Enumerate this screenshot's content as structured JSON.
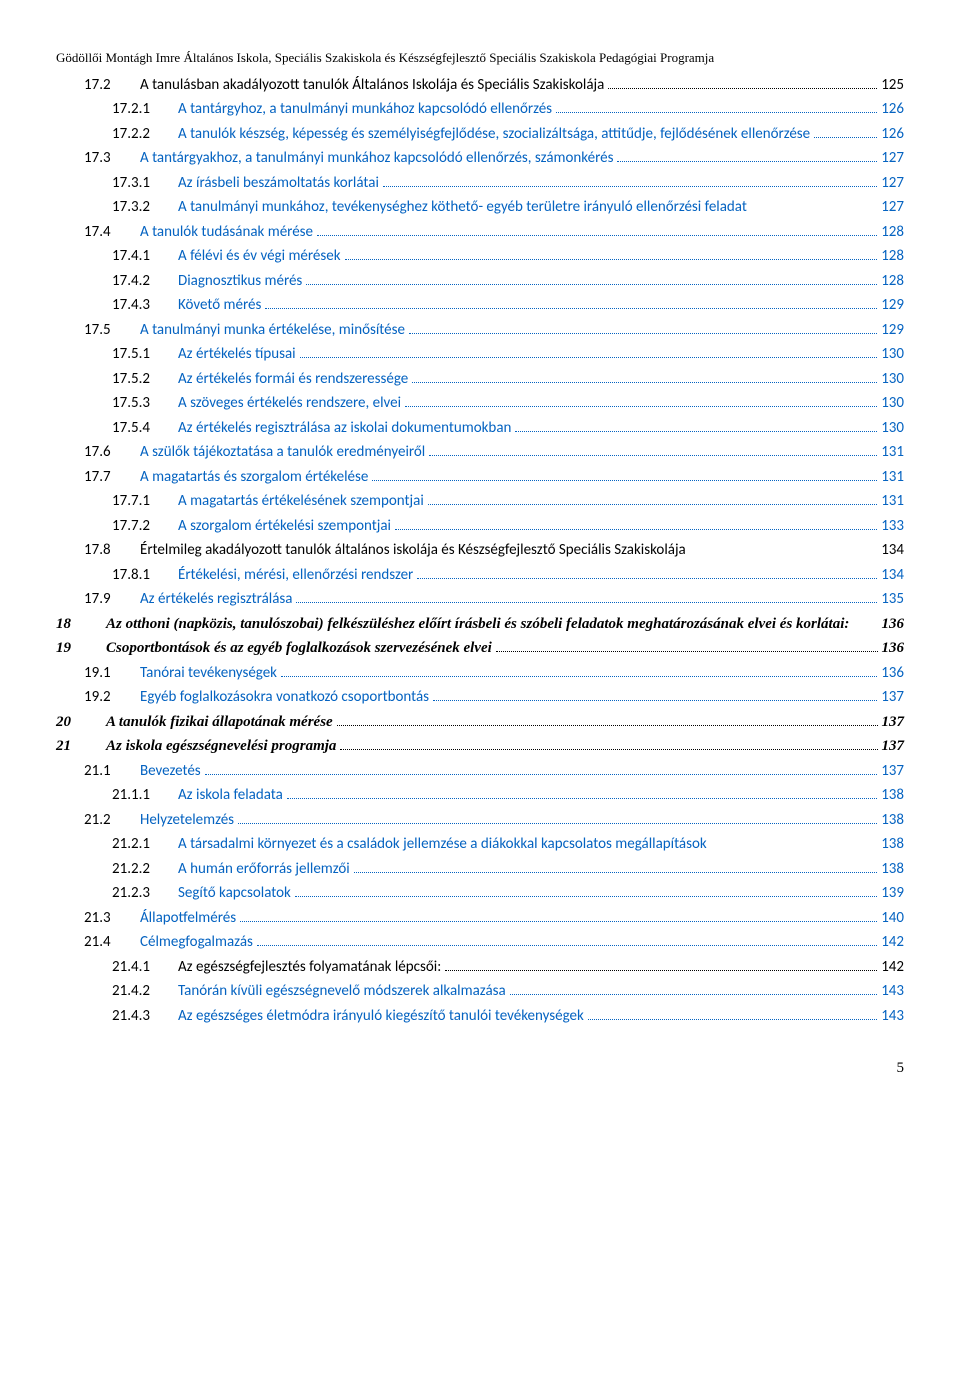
{
  "header": "Gödöllői Montágh Imre Általános Iskola, Speciális Szakiskola és Készségfejlesztő Speciális Szakiskola Pedagógiai Programja",
  "page_number": "5",
  "entries": [
    {
      "level": 1,
      "num": "17.2",
      "label": "A tanulásban akadályozott tanulók Általános Iskolája és Speciális Szakiskolája",
      "page": "125",
      "link": false,
      "style": "plain"
    },
    {
      "level": 2,
      "num": "17.2.1",
      "label": "A tantárgyhoz, a tanulmányi munkához kapcsolódó ellenőrzés",
      "page": "126",
      "link": true,
      "style": "plain"
    },
    {
      "level": 2,
      "num": "17.2.2",
      "label": "A tanulók készség, képesség és személyiségfejlődése, szocializáltsága, attitűdje, fejlődésének ellenőrzése",
      "page": "126",
      "link": true,
      "style": "plain"
    },
    {
      "level": 1,
      "num": "17.3",
      "label": "A tantárgyakhoz, a tanulmányi munkához kapcsolódó ellenőrzés, számonkérés",
      "page": "127",
      "link": true,
      "style": "plain"
    },
    {
      "level": 2,
      "num": "17.3.1",
      "label": "Az írásbeli beszámoltatás korlátai",
      "page": "127",
      "link": true,
      "style": "plain"
    },
    {
      "level": 2,
      "num": "17.3.2",
      "label": "A tanulmányi munkához, tevékenységhez köthető- egyéb területre irányuló ellenőrzési feladat",
      "page": "127",
      "link": true,
      "style": "plain",
      "nodots": true
    },
    {
      "level": 1,
      "num": "17.4",
      "label": "A tanulók tudásának mérése",
      "page": "128",
      "link": true,
      "style": "plain"
    },
    {
      "level": 2,
      "num": "17.4.1",
      "label": "A félévi és év végi mérések",
      "page": "128",
      "link": true,
      "style": "plain"
    },
    {
      "level": 2,
      "num": "17.4.2",
      "label": "Diagnosztikus mérés",
      "page": "128",
      "link": true,
      "style": "plain"
    },
    {
      "level": 2,
      "num": "17.4.3",
      "label": "Követő mérés",
      "page": "129",
      "link": true,
      "style": "plain"
    },
    {
      "level": 1,
      "num": "17.5",
      "label": "A tanulmányi munka értékelése, minősítése",
      "page": "129",
      "link": true,
      "style": "plain"
    },
    {
      "level": 2,
      "num": "17.5.1",
      "label": "Az értékelés típusai",
      "page": "130",
      "link": true,
      "style": "plain"
    },
    {
      "level": 2,
      "num": "17.5.2",
      "label": "Az értékelés formái és rendszeressége",
      "page": "130",
      "link": true,
      "style": "plain"
    },
    {
      "level": 2,
      "num": "17.5.3",
      "label": "A szöveges értékelés rendszere, elvei",
      "page": "130",
      "link": true,
      "style": "plain"
    },
    {
      "level": 2,
      "num": "17.5.4",
      "label": "Az értékelés regisztrálása az iskolai dokumentumokban",
      "page": "130",
      "link": true,
      "style": "plain"
    },
    {
      "level": 1,
      "num": "17.6",
      "label": "A szülők tájékoztatása a tanulók eredményeiről",
      "page": "131",
      "link": true,
      "style": "plain"
    },
    {
      "level": 1,
      "num": "17.7",
      "label": "A magatartás és szorgalom értékelése",
      "page": "131",
      "link": true,
      "style": "plain"
    },
    {
      "level": 2,
      "num": "17.7.1",
      "label": "A magatartás értékelésének szempontjai",
      "page": "131",
      "link": true,
      "style": "plain"
    },
    {
      "level": 2,
      "num": "17.7.2",
      "label": "A szorgalom értékelési szempontjai",
      "page": "133",
      "link": true,
      "style": "plain"
    },
    {
      "level": 1,
      "num": "17.8",
      "label": "Értelmileg akadályozott tanulók általános iskolája és Készségfejlesztő Speciális Szakiskolája",
      "page": "134",
      "link": false,
      "style": "mixed1",
      "nodots": true
    },
    {
      "level": 2,
      "num": "17.8.1",
      "label": "Értékelési, mérési, ellenőrzési rendszer",
      "page": "134",
      "link": true,
      "style": "plain"
    },
    {
      "level": 1,
      "num": "17.9",
      "label": "Az értékelés regisztrálása",
      "page": "135",
      "link": true,
      "style": "plain"
    },
    {
      "level": 0,
      "num": "18",
      "label": "Az otthoni (napközis, tanulószobai) felkészüléshez előírt írásbeli és szóbeli feladatok meghatározásának elvei és korlátai:",
      "page": "136",
      "link": false,
      "style": "bolditalic",
      "justify": true
    },
    {
      "level": 0,
      "num": "19",
      "label": "Csoportbontások és az egyéb foglalkozások szervezésének elvei",
      "page": "136",
      "link": false,
      "style": "bolditalic"
    },
    {
      "level": 1,
      "num": "19.1",
      "label": "Tanórai tevékenységek",
      "page": "136",
      "link": true,
      "style": "plain"
    },
    {
      "level": 1,
      "num": "19.2",
      "label": "Egyéb foglalkozásokra vonatkozó csoportbontás",
      "page": "137",
      "link": true,
      "style": "plain"
    },
    {
      "level": 0,
      "num": "20",
      "label": "A tanulók fizikai állapotának mérése",
      "page": "137",
      "link": false,
      "style": "bolditalic"
    },
    {
      "level": 0,
      "num": "21",
      "label": "Az iskola egészségnevelési programja",
      "page": "137",
      "link": false,
      "style": "bolditalic"
    },
    {
      "level": 1,
      "num": "21.1",
      "label": "Bevezetés",
      "page": "137",
      "link": true,
      "style": "plain"
    },
    {
      "level": 2,
      "num": "21.1.1",
      "label": "Az iskola feladata",
      "page": "138",
      "link": true,
      "style": "plain"
    },
    {
      "level": 1,
      "num": "21.2",
      "label": "Helyzetelemzés",
      "page": "138",
      "link": true,
      "style": "plain"
    },
    {
      "level": 2,
      "num": "21.2.1",
      "label": "A társadalmi környezet és a családok jellemzése a diákokkal kapcsolatos megállapítások",
      "page": "138",
      "link": true,
      "style": "plain",
      "nodots": true
    },
    {
      "level": 2,
      "num": "21.2.2",
      "label": "A humán erőforrás jellemzői",
      "page": "138",
      "link": true,
      "style": "plain"
    },
    {
      "level": 2,
      "num": "21.2.3",
      "label": "Segítő kapcsolatok",
      "page": "139",
      "link": true,
      "style": "plain"
    },
    {
      "level": 1,
      "num": "21.3",
      "label": "Állapotfelmérés",
      "page": "140",
      "link": true,
      "style": "plain"
    },
    {
      "level": 1,
      "num": "21.4",
      "label": "Célmegfogalmazás",
      "page": "142",
      "link": true,
      "style": "plain"
    },
    {
      "level": 2,
      "num": "21.4.1",
      "label": "Az egészségfejlesztés folyamatának lépcsői:",
      "page": "142",
      "link": false,
      "style": "plain"
    },
    {
      "level": 2,
      "num": "21.4.2",
      "label": "Tanórán kívüli egészségnevelő módszerek alkalmazása",
      "page": "143",
      "link": true,
      "style": "plain"
    },
    {
      "level": 2,
      "num": "21.4.3",
      "label": "Az egészséges életmódra irányuló kiegészítő tanulói tevékenységek",
      "page": "143",
      "link": true,
      "style": "plain"
    }
  ]
}
